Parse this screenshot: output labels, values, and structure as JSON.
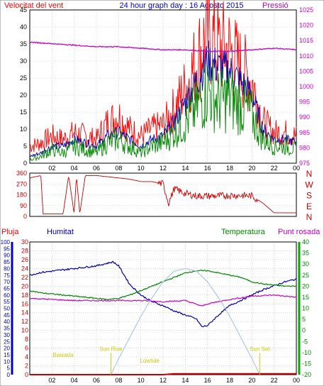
{
  "header": {
    "title": "24 hour graph day : 16 Agosto 2015",
    "left_label": "Velocitat del vent",
    "right_label": "Pressió"
  },
  "colors": {
    "wind": "#ff0000",
    "wind_avg": "#0000aa",
    "wind_green": "#008800",
    "pressure": "#cc00cc",
    "direction": "#cc0000",
    "humidity": "#0000aa",
    "temperature": "#008800",
    "dewpoint": "#cc00cc",
    "solar": "#a8c8ee",
    "rain": "#cc0000",
    "sun_event": "#cccc00",
    "grid": "#c0c0c0",
    "frame": "#000000"
  },
  "bottom": {
    "label_rain": "Pluja",
    "label_humidity": "Humitat",
    "label_temperature": "Temperatura",
    "label_dewpoint": "Punt rosada"
  },
  "annotations": [
    {
      "text": "Baixada",
      "hour": 3.0,
      "level": 0.27
    },
    {
      "text": "Sun Rise",
      "hour": 7.3,
      "level": 0.36
    },
    {
      "text": "Lowtide",
      "hour": 10.8,
      "level": 0.18
    },
    {
      "text": "Sun Set",
      "hour": 20.7,
      "level": 0.36
    }
  ],
  "chart_data": [
    {
      "type": "line",
      "title": "24 hour graph day : 16 Agosto 2015",
      "ylabel": "Velocitat del vent",
      "y2label": "Pressió",
      "x_ticks": [
        "02",
        "04",
        "06",
        "08",
        "10",
        "12",
        "14",
        "16",
        "18",
        "20",
        "22",
        "00"
      ],
      "x_tick_hours": [
        2,
        4,
        6,
        8,
        10,
        12,
        14,
        16,
        18,
        20,
        22,
        24
      ],
      "xlim": [
        0,
        24
      ],
      "ylim": [
        0,
        45
      ],
      "y_ticks": [
        0,
        5,
        10,
        15,
        20,
        25,
        30,
        35,
        40,
        45
      ],
      "y2lim": [
        975,
        1025
      ],
      "y2_ticks": [
        975,
        980,
        985,
        990,
        995,
        1000,
        1005,
        1010,
        1015,
        1020,
        1025
      ],
      "grid": true,
      "series": [
        {
          "key": "gust",
          "x": [
            0,
            1,
            2,
            3,
            4,
            5,
            6,
            7,
            8,
            9,
            10,
            11,
            12,
            13,
            14,
            15,
            16,
            17,
            18,
            19,
            20,
            21,
            22,
            23,
            24
          ],
          "y": [
            5,
            6,
            8,
            7,
            9,
            8,
            7,
            12,
            14,
            10,
            8,
            10,
            11,
            16,
            22,
            30,
            38,
            34,
            33,
            28,
            24,
            12,
            9,
            9,
            8
          ]
        },
        {
          "key": "avg",
          "x": [
            0,
            1,
            2,
            3,
            4,
            5,
            6,
            7,
            8,
            9,
            10,
            11,
            12,
            13,
            14,
            15,
            16,
            17,
            18,
            19,
            20,
            21,
            22,
            23,
            24
          ],
          "y": [
            2,
            3,
            5,
            5,
            7,
            6,
            5,
            8,
            9,
            7,
            5,
            7,
            8,
            12,
            18,
            24,
            30,
            28,
            27,
            24,
            20,
            10,
            7,
            7,
            6
          ]
        },
        {
          "key": "speed",
          "x": [
            0,
            1,
            2,
            3,
            4,
            5,
            6,
            7,
            8,
            9,
            10,
            11,
            12,
            13,
            14,
            15,
            16,
            17,
            18,
            19,
            20,
            21,
            22,
            23,
            24
          ],
          "y": [
            1,
            2,
            4,
            3,
            5,
            4,
            3,
            6,
            7,
            5,
            3,
            5,
            6,
            9,
            12,
            16,
            22,
            18,
            19,
            17,
            14,
            7,
            5,
            5,
            4
          ]
        },
        {
          "key": "pressure",
          "axis": "y2",
          "x": [
            0,
            2,
            4,
            6,
            8,
            10,
            12,
            14,
            16,
            18,
            20,
            22,
            24
          ],
          "y": [
            1014.5,
            1014,
            1013.5,
            1013,
            1013,
            1012.5,
            1012,
            1012,
            1011.5,
            1011.5,
            1012,
            1012.5,
            1012
          ]
        }
      ]
    },
    {
      "type": "line",
      "ylabels": [
        "N",
        "W",
        "S",
        "E",
        "N"
      ],
      "y_ticks": [
        0,
        90,
        180,
        270,
        360
      ],
      "ylim": [
        0,
        360
      ],
      "xlim": [
        0,
        24
      ],
      "series": [
        {
          "key": "direction",
          "x": [
            0,
            1,
            1.2,
            2,
            2.2,
            3,
            3.5,
            4,
            4.2,
            4.5,
            5,
            5.5,
            6,
            7,
            8,
            9,
            10,
            11,
            12,
            12.5,
            13,
            14,
            15,
            16,
            17,
            18,
            19,
            20,
            21,
            22,
            23,
            24
          ],
          "y": [
            320,
            340,
            20,
            20,
            20,
            20,
            340,
            20,
            340,
            20,
            340,
            340,
            340,
            330,
            320,
            310,
            290,
            290,
            270,
            110,
            230,
            190,
            170,
            170,
            170,
            175,
            175,
            170,
            110,
            30,
            30,
            30
          ]
        }
      ]
    },
    {
      "type": "line",
      "xlim": [
        0,
        24
      ],
      "x_ticks": [
        "02",
        "04",
        "06",
        "08",
        "10",
        "12",
        "14",
        "16",
        "18",
        "20",
        "22",
        "00"
      ],
      "x_tick_hours": [
        2,
        4,
        6,
        8,
        10,
        12,
        14,
        16,
        18,
        20,
        22,
        24
      ],
      "y_humidity_lim": [
        0,
        100
      ],
      "y_humidity_ticks": [
        0,
        5,
        10,
        15,
        20,
        25,
        30,
        35,
        40,
        45,
        50,
        55,
        60,
        65,
        70,
        75,
        80,
        85,
        90,
        95,
        100
      ],
      "y_rain_lim": [
        0,
        30
      ],
      "y_rain_ticks": [
        0,
        2,
        4,
        6,
        8,
        10,
        12,
        14,
        16,
        18,
        20,
        22,
        24,
        26,
        28,
        30
      ],
      "y_temp_lim": [
        -20,
        40
      ],
      "y_temp_ticks": [
        -20,
        -15,
        -10,
        -5,
        0,
        5,
        10,
        15,
        20,
        25,
        30,
        35,
        40
      ],
      "grid": true,
      "series": [
        {
          "key": "humidity",
          "axis": "humidity",
          "x": [
            0,
            1,
            2,
            3,
            4,
            5,
            6,
            7,
            7.5,
            8,
            9,
            10,
            11,
            12,
            13,
            14,
            15,
            15.5,
            16,
            17,
            18,
            19,
            20,
            21,
            22,
            23,
            24
          ],
          "y": [
            75,
            77,
            78,
            79,
            80,
            81,
            82,
            84,
            85,
            82,
            68,
            60,
            55,
            52,
            48,
            45,
            42,
            36,
            37,
            45,
            52,
            56,
            60,
            64,
            67,
            70,
            72
          ]
        },
        {
          "key": "temperature",
          "axis": "temp",
          "x": [
            0,
            1,
            2,
            3,
            4,
            5,
            6,
            7,
            8,
            9,
            10,
            11,
            12,
            13,
            14,
            15,
            16,
            17,
            18,
            19,
            20,
            21,
            22,
            23,
            24
          ],
          "y": [
            18,
            17,
            16.5,
            16,
            15.5,
            15,
            14.5,
            14,
            14.5,
            16,
            18,
            20,
            22,
            24,
            26,
            27,
            27,
            26,
            25,
            24,
            22,
            21,
            20.5,
            20,
            20
          ]
        },
        {
          "key": "dewpoint",
          "axis": "temp",
          "x": [
            0,
            2,
            4,
            6,
            8,
            10,
            12,
            14,
            15.5,
            16,
            18,
            20,
            22,
            24
          ],
          "y": [
            14.5,
            14,
            13.5,
            13.5,
            13.5,
            13.5,
            13,
            13.5,
            11,
            12,
            14,
            15.5,
            16,
            15
          ]
        },
        {
          "key": "solar",
          "axis": "humidity",
          "x": [
            7.3,
            8,
            9,
            10,
            11,
            12,
            13,
            14,
            15,
            16,
            17,
            18,
            19,
            20,
            20.7
          ],
          "y": [
            0,
            12,
            28,
            44,
            58,
            70,
            78,
            80,
            78,
            70,
            58,
            44,
            28,
            12,
            0
          ]
        },
        {
          "key": "rain",
          "axis": "rain",
          "x": [
            0,
            12,
            13,
            24
          ],
          "y": [
            0,
            0,
            0.2,
            0.2
          ]
        }
      ]
    }
  ]
}
